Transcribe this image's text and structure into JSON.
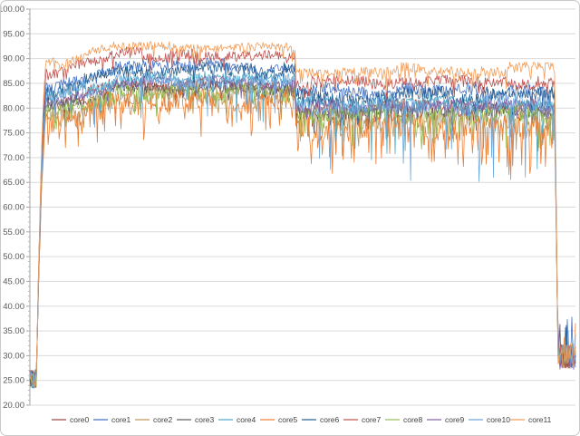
{
  "chart_data": {
    "type": "line",
    "title": "",
    "xlabel": "",
    "ylabel": "",
    "x_tick_labels_visible": false,
    "x_points": 600,
    "grid": true,
    "y_axis": {
      "min": 20,
      "max": 100,
      "tick_step": 5,
      "minor_step": 1,
      "tick_labels": [
        "100.00",
        "95.00",
        "90.00",
        "85.00",
        "80.00",
        "75.00",
        "70.00",
        "65.00",
        "60.00",
        "55.00",
        "50.00",
        "45.00",
        "40.00",
        "35.00",
        "30.00",
        "25.00",
        "20.00"
      ]
    },
    "colors": {
      "gridline": "#d9d9d9",
      "axis": "#a6a6a6",
      "tick": "#a6a6a6",
      "tick_label": "#595959",
      "legend_label": "#404040",
      "frame_border": "#c9c9c9",
      "background": "#ffffff"
    },
    "legend": {
      "position": "bottom"
    },
    "phases": {
      "idle_start": {
        "x_end": 0.012,
        "level": 25.3,
        "noise": 1.9
      },
      "ramp_x_end": 0.032,
      "phase1_x_end": 0.487,
      "phase2_x_end": 0.962,
      "drop_x_end": 0.968,
      "idle_end": {
        "level": 29.8,
        "noise": 2.6
      }
    },
    "series": [
      {
        "name": "core0",
        "color": "#9c4a41",
        "phase1_level": 84.5,
        "phase2_level": 80.0,
        "noise": 1.2,
        "dip_prob": 0.05,
        "dip_depth": 3.0
      },
      {
        "name": "core1",
        "color": "#4472c4",
        "phase1_level": 88.3,
        "phase2_level": 83.3,
        "noise": 1.1,
        "dip_prob": 0.04,
        "dip_depth": 3.0
      },
      {
        "name": "core2",
        "color": "#bf9355",
        "phase1_level": 82.3,
        "phase2_level": 77.8,
        "noise": 1.5,
        "dip_prob": 0.1,
        "dip_depth": 4.0
      },
      {
        "name": "core3",
        "color": "#5b5b5b",
        "phase1_level": 84.0,
        "phase2_level": 79.3,
        "noise": 1.2,
        "dip_prob": 0.05,
        "dip_depth": 3.0
      },
      {
        "name": "core4",
        "color": "#4bacc6",
        "phase1_level": 86.0,
        "phase2_level": 81.0,
        "noise": 1.1,
        "dip_prob": 0.05,
        "dip_depth": 9.0
      },
      {
        "name": "core5",
        "color": "#ed7d31",
        "phase1_level": 81.3,
        "phase2_level": 76.5,
        "noise": 2.2,
        "dip_prob": 0.16,
        "dip_depth": 7.0
      },
      {
        "name": "core6",
        "color": "#255e91",
        "phase1_level": 87.3,
        "phase2_level": 82.3,
        "noise": 1.2,
        "dip_prob": 0.04,
        "dip_depth": 3.0
      },
      {
        "name": "core7",
        "color": "#c0504d",
        "phase1_level": 90.8,
        "phase2_level": 85.3,
        "noise": 1.0,
        "dip_prob": 0.05,
        "dip_depth": 2.5
      },
      {
        "name": "core8",
        "color": "#9bbb59",
        "phase1_level": 83.2,
        "phase2_level": 78.6,
        "noise": 1.4,
        "dip_prob": 0.08,
        "dip_depth": 4.0
      },
      {
        "name": "core9",
        "color": "#8064a2",
        "phase1_level": 85.0,
        "phase2_level": 80.2,
        "noise": 1.0,
        "dip_prob": 0.04,
        "dip_depth": 2.5
      },
      {
        "name": "core10",
        "color": "#6fa8dc",
        "phase1_level": 85.6,
        "phase2_level": 80.6,
        "noise": 1.4,
        "dip_prob": 0.05,
        "dip_depth": 11.0
      },
      {
        "name": "core11",
        "color": "#f09d5b",
        "phase1_level": 92.8,
        "phase2_level": 87.6,
        "noise": 0.9,
        "dip_prob": 0.06,
        "dip_depth": 2.2
      }
    ]
  }
}
